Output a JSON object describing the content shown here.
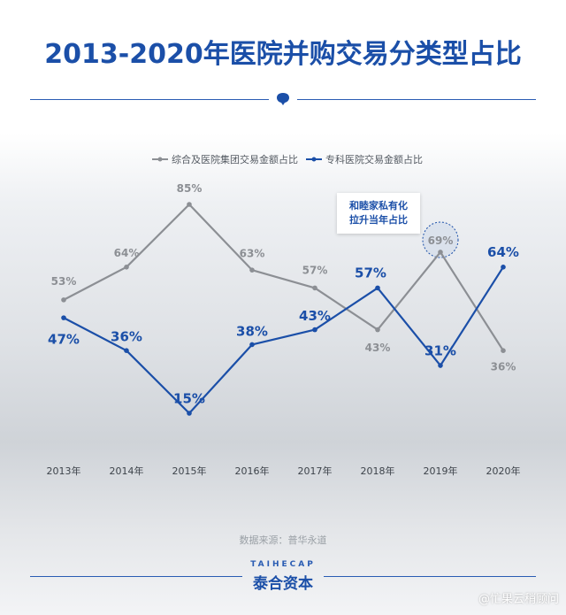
{
  "title": "2013-2020年医院并购交易分类型占比",
  "legend": {
    "gray_label": "综合及医院集团交易金额占比",
    "blue_label": "专科医院交易金额占比"
  },
  "callout": {
    "line1": "和睦家私有化",
    "line2": "拉升当年占比"
  },
  "source": "数据来源：普华永道",
  "brand": {
    "en": "TAIHECAP",
    "cn": "泰合资本"
  },
  "watermark": "@忙果云稍顾问",
  "colors": {
    "gray": "#8c8f94",
    "blue": "#1b4fa8"
  },
  "chart_data": {
    "type": "line",
    "categories": [
      "2013年",
      "2014年",
      "2015年",
      "2016年",
      "2017年",
      "2018年",
      "2019年",
      "2020年"
    ],
    "series": [
      {
        "name": "综合及医院集团交易金额占比",
        "values": [
          53,
          64,
          85,
          63,
          57,
          43,
          69,
          36
        ],
        "labels": [
          "53%",
          "64%",
          "85%",
          "63%",
          "57%",
          "43%",
          "69%",
          "36%"
        ]
      },
      {
        "name": "专科医院交易金额占比",
        "values": [
          47,
          36,
          15,
          38,
          43,
          57,
          31,
          64
        ],
        "labels": [
          "47%",
          "36%",
          "15%",
          "38%",
          "43%",
          "57%",
          "31%",
          "64%"
        ]
      }
    ],
    "ylim": [
      0,
      100
    ],
    "grid": false,
    "legend_position": "top"
  }
}
